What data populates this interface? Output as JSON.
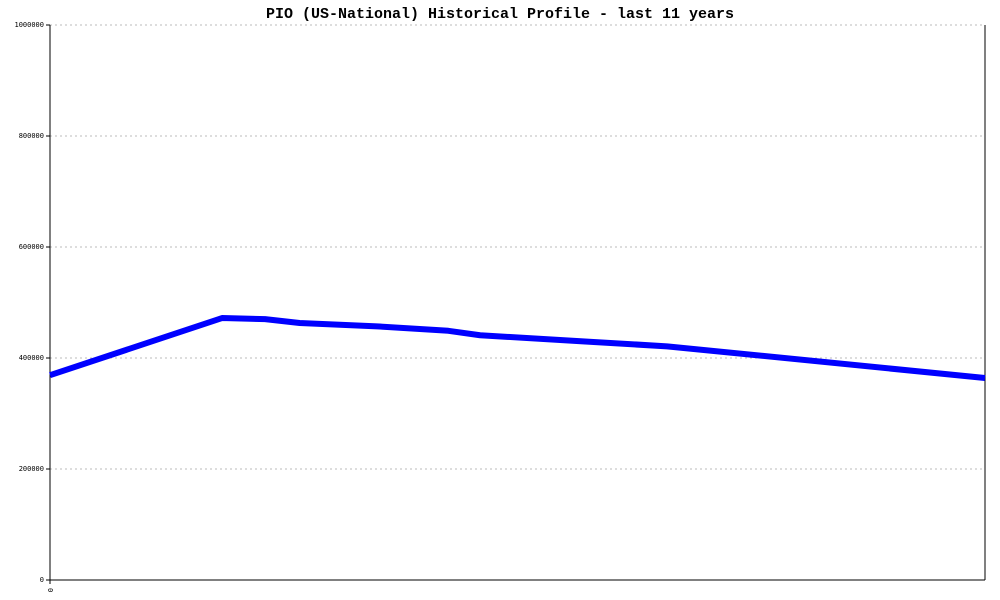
{
  "chart_data": {
    "type": "line",
    "title": "PIO (US-National) Historical Profile - last 11 years",
    "x": [
      0,
      1.84,
      2.3,
      2.67,
      3.5,
      4.26,
      4.6,
      5.7,
      6.6,
      10
    ],
    "series": [
      {
        "color": "#0000ff",
        "values": [
          369000,
          472000,
          470000,
          463000,
          457000,
          449000,
          441000,
          430000,
          421000,
          364000
        ]
      }
    ],
    "xlim": [
      0,
      10
    ],
    "xticks": [
      0
    ],
    "ylim": [
      0,
      1000000
    ],
    "yticks": [
      0,
      200000,
      400000,
      600000,
      800000,
      1000000
    ],
    "grid": true
  }
}
